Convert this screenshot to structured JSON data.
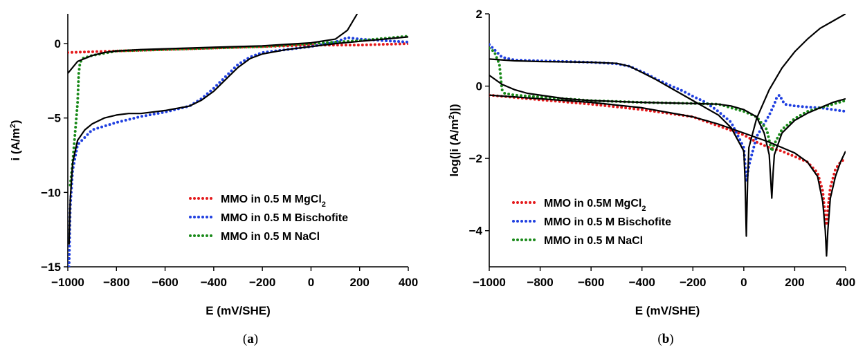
{
  "chart_data": [
    {
      "type": "line",
      "caption": "(a)",
      "xlabel": "E (mV/SHE)",
      "ylabel": "i (A/m2)",
      "xlim": [
        -1000,
        400
      ],
      "ylim": [
        -15,
        2
      ],
      "xticks": [
        -1000,
        -800,
        -600,
        -400,
        -200,
        0,
        200,
        400
      ],
      "xtick_labels": [
        "−1000",
        "−800",
        "−600",
        "−400",
        "−200",
        "0",
        "200",
        "400"
      ],
      "yticks": [
        -15,
        -10,
        -5,
        0
      ],
      "ytick_labels": [
        "−15",
        "−10",
        "−5",
        "0"
      ],
      "legend_position": "bottom-right",
      "series": [
        {
          "name": "MMO in 0.5 M MgCl2",
          "style": "dotted",
          "color": "#e41a1c",
          "x": [
            -1000,
            -800,
            -600,
            -400,
            -200,
            0,
            200,
            400
          ],
          "y": [
            -0.6,
            -0.5,
            -0.4,
            -0.3,
            -0.2,
            -0.1,
            -0.1,
            0.0
          ]
        },
        {
          "name": "MMO in 0.5 M Bischofite",
          "style": "dotted",
          "color": "#1f3fe0",
          "x": [
            -995,
            -990,
            -980,
            -960,
            -900,
            -800,
            -700,
            -600,
            -500,
            -450,
            -400,
            -350,
            -300,
            -250,
            -200,
            -100,
            0,
            100,
            150,
            200,
            300,
            400
          ],
          "y": [
            -15,
            -11,
            -8.5,
            -6.8,
            -5.8,
            -5.3,
            -4.9,
            -4.6,
            -4.2,
            -3.7,
            -3.0,
            -2.2,
            -1.4,
            -0.9,
            -0.6,
            -0.4,
            -0.2,
            0.1,
            0.4,
            0.3,
            0.2,
            0.1
          ]
        },
        {
          "name": "MMO in 0.5 M NaCl",
          "style": "dotted",
          "color": "#1a8a1a",
          "x": [
            -990,
            -980,
            -970,
            -960,
            -955,
            -950,
            -940,
            -900,
            -800,
            -600,
            -400,
            -200,
            0,
            200,
            400
          ],
          "y": [
            -9.5,
            -8.0,
            -6.0,
            -4.0,
            -2.0,
            -1.3,
            -1.0,
            -0.8,
            -0.5,
            -0.4,
            -0.3,
            -0.2,
            0.0,
            0.2,
            0.5
          ]
        },
        {
          "name": "",
          "style": "solid",
          "color": "#000000",
          "x": [
            -1000,
            -960,
            -900,
            -850,
            -800,
            -700,
            -600,
            -500,
            -400,
            -300,
            -200,
            -100,
            0,
            100,
            150,
            190
          ],
          "y": [
            -2.0,
            -1.2,
            -0.8,
            -0.6,
            -0.5,
            -0.4,
            -0.35,
            -0.3,
            -0.25,
            -0.2,
            -0.15,
            -0.05,
            0.05,
            0.3,
            0.9,
            2.0
          ]
        },
        {
          "name": "",
          "style": "solid",
          "color": "#000000",
          "x": [
            -995,
            -990,
            -980,
            -960,
            -930,
            -900,
            -850,
            -800,
            -750,
            -700,
            -600,
            -500,
            -450,
            -400,
            -350,
            -300,
            -250,
            -200,
            -100,
            0,
            100,
            200,
            300,
            400
          ],
          "y": [
            -13.5,
            -10.5,
            -8.0,
            -6.5,
            -5.8,
            -5.4,
            -5.0,
            -4.8,
            -4.7,
            -4.7,
            -4.5,
            -4.2,
            -3.8,
            -3.2,
            -2.4,
            -1.6,
            -1.0,
            -0.7,
            -0.4,
            -0.2,
            0.0,
            0.15,
            0.3,
            0.45
          ]
        }
      ]
    },
    {
      "type": "line",
      "caption": "(b)",
      "xlabel": "E (mV/SHE)",
      "ylabel": "log(|i (A/m2)|)",
      "xlim": [
        -1000,
        400
      ],
      "ylim": [
        -5,
        2
      ],
      "xticks": [
        -1000,
        -800,
        -600,
        -400,
        -200,
        0,
        200,
        400
      ],
      "xtick_labels": [
        "−1000",
        "−800",
        "−600",
        "−400",
        "−200",
        "0",
        "200",
        "400"
      ],
      "yticks": [
        -4,
        -2,
        0,
        2
      ],
      "ytick_labels": [
        "−4",
        "−2",
        "0",
        "2"
      ],
      "legend_position": "bottom-left",
      "series": [
        {
          "name": "MMO in 0.5M MgCl2",
          "style": "dotted",
          "color": "#e41a1c",
          "x": [
            -1000,
            -800,
            -600,
            -400,
            -200,
            0,
            50,
            100,
            150,
            200,
            250,
            290,
            310,
            320,
            325,
            330,
            340,
            360,
            380,
            400
          ],
          "y": [
            -0.25,
            -0.38,
            -0.5,
            -0.65,
            -0.85,
            -1.35,
            -1.55,
            -1.7,
            -1.8,
            -1.95,
            -2.1,
            -2.4,
            -2.9,
            -3.6,
            -3.85,
            -3.4,
            -2.8,
            -2.3,
            -2.1,
            -2.0
          ]
        },
        {
          "name": "MMO in 0.5 M Bischofite",
          "style": "dotted",
          "color": "#1f3fe0",
          "x": [
            -1000,
            -950,
            -900,
            -800,
            -700,
            -600,
            -500,
            -450,
            -400,
            -350,
            -300,
            -250,
            -200,
            -150,
            -100,
            -50,
            0,
            10,
            20,
            50,
            100,
            120,
            130,
            140,
            160,
            200,
            250,
            300,
            350,
            400
          ],
          "y": [
            1.15,
            0.8,
            0.72,
            0.7,
            0.68,
            0.66,
            0.62,
            0.55,
            0.4,
            0.22,
            0.05,
            -0.1,
            -0.28,
            -0.45,
            -0.7,
            -1.0,
            -1.7,
            -2.65,
            -2.2,
            -1.4,
            -0.8,
            -0.5,
            -0.3,
            -0.25,
            -0.5,
            -0.55,
            -0.58,
            -0.6,
            -0.65,
            -0.7
          ]
        },
        {
          "name": "MMO in 0.5 M NaCl",
          "style": "dotted",
          "color": "#1a8a1a",
          "x": [
            -1000,
            -980,
            -960,
            -950,
            -940,
            -900,
            -800,
            -600,
            -400,
            -200,
            -100,
            0,
            50,
            90,
            100,
            110,
            120,
            150,
            200,
            250,
            300,
            350,
            400
          ],
          "y": [
            1.05,
            0.95,
            0.6,
            -0.1,
            -0.2,
            -0.25,
            -0.3,
            -0.4,
            -0.45,
            -0.48,
            -0.5,
            -0.7,
            -0.85,
            -1.2,
            -1.5,
            -1.8,
            -1.6,
            -1.2,
            -0.9,
            -0.7,
            -0.6,
            -0.5,
            -0.4
          ]
        },
        {
          "name": "",
          "style": "solid",
          "color": "#000000",
          "x": [
            -1000,
            -800,
            -600,
            -400,
            -200,
            -100,
            0,
            100,
            200,
            250,
            290,
            310,
            320,
            325,
            330,
            340,
            360,
            380,
            400
          ],
          "y": [
            -0.25,
            -0.35,
            -0.45,
            -0.6,
            -0.85,
            -1.05,
            -1.3,
            -1.55,
            -1.85,
            -2.1,
            -2.5,
            -3.2,
            -4.0,
            -4.7,
            -4.0,
            -3.1,
            -2.5,
            -2.1,
            -1.8
          ]
        },
        {
          "name": "",
          "style": "solid",
          "color": "#000000",
          "x": [
            -1000,
            -900,
            -800,
            -700,
            -600,
            -500,
            -450,
            -400,
            -350,
            -300,
            -250,
            -200,
            -100,
            -50,
            0,
            5,
            10,
            15,
            20,
            50,
            100,
            150,
            200,
            250,
            300,
            350,
            400
          ],
          "y": [
            0.75,
            0.7,
            0.68,
            0.67,
            0.66,
            0.63,
            0.55,
            0.38,
            0.2,
            0.0,
            -0.2,
            -0.4,
            -0.8,
            -1.15,
            -1.8,
            -2.6,
            -4.15,
            -2.6,
            -1.7,
            -0.9,
            -0.1,
            0.5,
            0.95,
            1.3,
            1.6,
            1.8,
            2.0
          ]
        },
        {
          "name": "",
          "style": "solid",
          "color": "#000000",
          "x": [
            -1000,
            -950,
            -900,
            -850,
            -800,
            -700,
            -600,
            -400,
            -200,
            -100,
            -50,
            0,
            50,
            80,
            100,
            105,
            110,
            115,
            120,
            150,
            200,
            250,
            300,
            350,
            400
          ],
          "y": [
            0.3,
            0.05,
            -0.1,
            -0.2,
            -0.25,
            -0.35,
            -0.4,
            -0.45,
            -0.48,
            -0.5,
            -0.55,
            -0.65,
            -0.85,
            -1.3,
            -1.9,
            -2.5,
            -3.1,
            -2.4,
            -1.9,
            -1.3,
            -0.95,
            -0.75,
            -0.6,
            -0.45,
            -0.35
          ]
        }
      ]
    }
  ]
}
